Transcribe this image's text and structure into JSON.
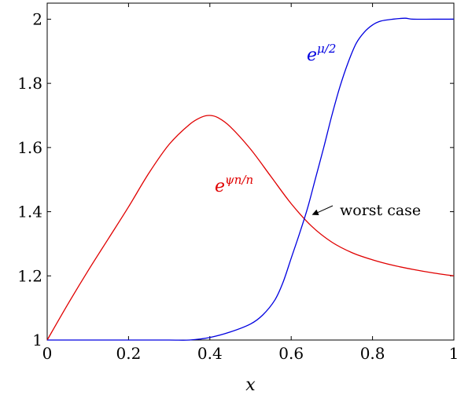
{
  "chart_data": {
    "type": "line",
    "xlabel": "x",
    "ylabel": "",
    "xlim": [
      0,
      1
    ],
    "ylim": [
      1,
      2.05
    ],
    "grid": false,
    "x_ticks": [
      "0",
      "0.2",
      "0.4",
      "0.6",
      "0.8",
      "1"
    ],
    "y_ticks": [
      "1",
      "1.2",
      "1.4",
      "1.6",
      "1.8",
      "2"
    ],
    "series": [
      {
        "name_base": "e",
        "name_sup": "ψn/n",
        "color": "#e00000",
        "x": [
          0,
          0.05,
          0.1,
          0.15,
          0.2,
          0.25,
          0.3,
          0.35,
          0.38,
          0.4,
          0.42,
          0.45,
          0.5,
          0.55,
          0.6,
          0.65,
          0.7,
          0.75,
          0.8,
          0.85,
          0.9,
          0.95,
          1.0
        ],
        "y": [
          1.0,
          1.11,
          1.215,
          1.315,
          1.415,
          1.52,
          1.61,
          1.672,
          1.695,
          1.7,
          1.693,
          1.665,
          1.595,
          1.51,
          1.425,
          1.355,
          1.305,
          1.272,
          1.25,
          1.233,
          1.22,
          1.209,
          1.2
        ]
      },
      {
        "name_base": "e",
        "name_sup": "μ/2",
        "color": "#0000e0",
        "x": [
          0,
          0.1,
          0.2,
          0.3,
          0.35,
          0.4,
          0.45,
          0.5,
          0.53,
          0.56,
          0.58,
          0.6,
          0.62,
          0.64,
          0.66,
          0.68,
          0.7,
          0.72,
          0.74,
          0.76,
          0.78,
          0.8,
          0.82,
          0.85,
          0.88,
          0.9,
          0.95,
          1.0
        ],
        "y": [
          1.0,
          1.0,
          1.0,
          1.0,
          1.0,
          1.008,
          1.025,
          1.05,
          1.078,
          1.125,
          1.18,
          1.255,
          1.33,
          1.41,
          1.505,
          1.6,
          1.7,
          1.79,
          1.865,
          1.925,
          1.96,
          1.982,
          1.994,
          2.0,
          2.003,
          2.0,
          2.0,
          2.0
        ]
      }
    ],
    "annotation": {
      "text": "worst case",
      "point": [
        0.651,
        1.39
      ]
    }
  }
}
